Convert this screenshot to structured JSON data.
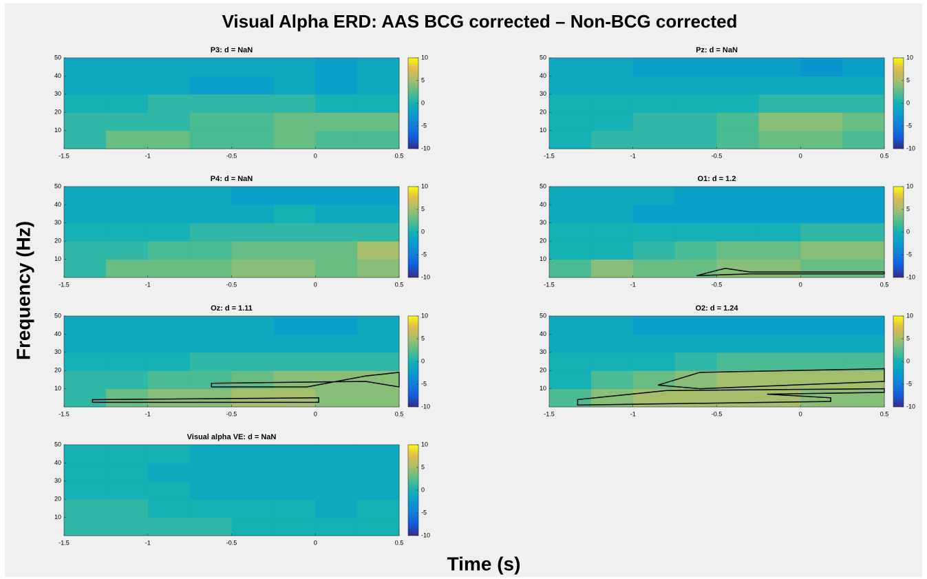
{
  "title": "Visual Alpha ERD: AAS BCG corrected – Non-BCG corrected",
  "x_label": "Time (s)",
  "y_label": "Frequency (Hz)",
  "chart_data": [
    {
      "type": "heatmap",
      "title": "P3: d = NaN",
      "colormap": "parula",
      "xbins": [
        -1.5,
        -1.25,
        -1,
        -0.75,
        -0.5,
        -0.25,
        0,
        0.25,
        0.5
      ],
      "ybins": [
        0,
        10,
        20,
        30,
        40,
        50
      ],
      "values": [
        [
          1,
          3,
          3,
          2,
          2,
          3,
          2,
          2
        ],
        [
          1,
          1,
          1,
          2,
          2,
          3,
          3,
          3
        ],
        [
          0,
          0,
          1,
          1,
          1,
          1,
          0,
          0
        ],
        [
          -1,
          -1,
          -1,
          -2,
          -2,
          -1,
          -2,
          -1
        ],
        [
          -1,
          -1,
          -1,
          -1,
          -1,
          -1,
          -2,
          -1
        ]
      ],
      "xlim": [
        -1.5,
        0.5
      ],
      "xticks": [
        -1.5,
        -1,
        -0.5,
        0,
        0.5
      ],
      "ylim": [
        0,
        50
      ],
      "yticks": [
        10,
        20,
        30,
        40,
        50
      ],
      "clim": [
        -10,
        10
      ],
      "cticks": [
        -10,
        -5,
        0,
        5,
        10
      ],
      "contours": []
    },
    {
      "type": "heatmap",
      "title": "Pz: d = NaN",
      "colormap": "parula",
      "xbins": [
        -1.5,
        -1.25,
        -1,
        -0.75,
        -0.5,
        -0.25,
        0,
        0.25,
        0.5
      ],
      "ybins": [
        0,
        10,
        20,
        30,
        40,
        50
      ],
      "values": [
        [
          0,
          1,
          1,
          1,
          2,
          3,
          3,
          2
        ],
        [
          0,
          0,
          1,
          1,
          2,
          4,
          4,
          3
        ],
        [
          0,
          0,
          0,
          0,
          0,
          1,
          1,
          1
        ],
        [
          -1,
          -1,
          -1,
          -1,
          -1,
          -1,
          -1,
          -1
        ],
        [
          -1,
          -1,
          -2,
          -2,
          -2,
          -2,
          -3,
          -2
        ]
      ],
      "xlim": [
        -1.5,
        0.5
      ],
      "xticks": [
        -1.5,
        -1,
        -0.5,
        0,
        0.5
      ],
      "ylim": [
        0,
        50
      ],
      "yticks": [
        10,
        20,
        30,
        40,
        50
      ],
      "clim": [
        -10,
        10
      ],
      "cticks": [
        -10,
        -5,
        0,
        5,
        10
      ],
      "contours": []
    },
    {
      "type": "heatmap",
      "title": "P4: d = NaN",
      "colormap": "parula",
      "xbins": [
        -1.5,
        -1.25,
        -1,
        -0.75,
        -0.5,
        -0.25,
        0,
        0.25,
        0.5
      ],
      "ybins": [
        0,
        10,
        20,
        30,
        40,
        50
      ],
      "values": [
        [
          1,
          3,
          3,
          3,
          4,
          4,
          3,
          4
        ],
        [
          1,
          1,
          2,
          2,
          3,
          3,
          3,
          5
        ],
        [
          0,
          0,
          0,
          1,
          1,
          1,
          1,
          1
        ],
        [
          -1,
          -1,
          -1,
          -1,
          -1,
          0,
          -1,
          -1
        ],
        [
          -1,
          -1,
          -1,
          -1,
          -2,
          -2,
          -2,
          -2
        ]
      ],
      "xlim": [
        -1.5,
        0.5
      ],
      "xticks": [
        -1.5,
        -1,
        -0.5,
        0,
        0.5
      ],
      "ylim": [
        0,
        50
      ],
      "yticks": [
        10,
        20,
        30,
        40,
        50
      ],
      "clim": [
        -10,
        10
      ],
      "cticks": [
        -10,
        -5,
        0,
        5,
        10
      ],
      "contours": []
    },
    {
      "type": "heatmap",
      "title": "O1: d = 1.2",
      "colormap": "parula",
      "xbins": [
        -1.5,
        -1.25,
        -1,
        -0.75,
        -0.5,
        -0.25,
        0,
        0.25,
        0.5
      ],
      "ybins": [
        0,
        10,
        20,
        30,
        40,
        50
      ],
      "values": [
        [
          2,
          4,
          3,
          3,
          4,
          4,
          3,
          3
        ],
        [
          0,
          0,
          1,
          2,
          3,
          3,
          4,
          4
        ],
        [
          0,
          0,
          0,
          0,
          0,
          0,
          1,
          1
        ],
        [
          -1,
          -1,
          -2,
          -2,
          -2,
          -2,
          -2,
          -2
        ],
        [
          -1,
          -1,
          -1,
          -2,
          -2,
          -2,
          -2,
          -2
        ]
      ],
      "xlim": [
        -1.5,
        0.5
      ],
      "xticks": [
        -1.5,
        -1,
        -0.5,
        0,
        0.5
      ],
      "ylim": [
        0,
        50
      ],
      "yticks": [
        10,
        20,
        30,
        40,
        50
      ],
      "clim": [
        -10,
        10
      ],
      "cticks": [
        -10,
        -5,
        0,
        5,
        10
      ],
      "contours": [
        {
          "x": [
            -0.62,
            -0.45,
            -0.3,
            0.5,
            0.5,
            -0.3,
            -0.62
          ],
          "y": [
            1,
            5,
            3,
            3,
            2,
            2,
            1
          ]
        }
      ]
    },
    {
      "type": "heatmap",
      "title": "Oz: d = 1.11",
      "colormap": "parula",
      "xbins": [
        -1.5,
        -1.25,
        -1,
        -0.75,
        -0.5,
        -0.25,
        0,
        0.25,
        0.5
      ],
      "ybins": [
        0,
        10,
        20,
        30,
        40,
        50
      ],
      "values": [
        [
          1,
          3,
          4,
          4,
          5,
          5,
          4,
          4
        ],
        [
          1,
          1,
          2,
          2,
          3,
          4,
          4,
          4
        ],
        [
          0,
          0,
          0,
          1,
          1,
          1,
          1,
          1
        ],
        [
          -1,
          -1,
          -1,
          -1,
          -1,
          -1,
          -1,
          -1
        ],
        [
          -1,
          -1,
          -1,
          -1,
          -1,
          -2,
          -2,
          -1
        ]
      ],
      "xlim": [
        -1.5,
        0.5
      ],
      "xticks": [
        -1.5,
        -1,
        -0.5,
        0,
        0.5
      ],
      "ylim": [
        0,
        50
      ],
      "yticks": [
        10,
        20,
        30,
        40,
        50
      ],
      "clim": [
        -10,
        10
      ],
      "cticks": [
        -10,
        -5,
        0,
        5,
        10
      ],
      "contours": [
        {
          "x": [
            -1.33,
            0.02,
            0.02,
            -1.33
          ],
          "y": [
            2.5,
            2.5,
            5,
            4
          ]
        },
        {
          "x": [
            -0.62,
            -0.05,
            0.3,
            0.5,
            0.5,
            0.3,
            -0.62
          ],
          "y": [
            11,
            11,
            17,
            19,
            11,
            14,
            13
          ]
        }
      ]
    },
    {
      "type": "heatmap",
      "title": "O2: d = 1.24",
      "colormap": "parula",
      "xbins": [
        -1.5,
        -1.25,
        -1,
        -0.75,
        -0.5,
        -0.25,
        0,
        0.25,
        0.5
      ],
      "ybins": [
        0,
        10,
        20,
        30,
        40,
        50
      ],
      "values": [
        [
          2,
          4,
          5,
          5,
          5,
          5,
          4,
          4
        ],
        [
          0,
          2,
          3,
          4,
          5,
          5,
          5,
          5
        ],
        [
          0,
          0,
          0,
          1,
          2,
          2,
          2,
          2
        ],
        [
          -1,
          -1,
          -1,
          -1,
          -1,
          -1,
          -1,
          -1
        ],
        [
          -1,
          -1,
          -2,
          -2,
          -2,
          -2,
          -2,
          -2
        ]
      ],
      "xlim": [
        -1.5,
        0.5
      ],
      "xticks": [
        -1.5,
        -1,
        -0.5,
        0,
        0.5
      ],
      "ylim": [
        0,
        50
      ],
      "yticks": [
        10,
        20,
        30,
        40,
        50
      ],
      "clim": [
        -10,
        10
      ],
      "cticks": [
        -10,
        -5,
        0,
        5,
        10
      ],
      "contours": [
        {
          "x": [
            -1.33,
            0.18,
            0.18,
            -0.2,
            0.5,
            0.5,
            -0.8,
            -1.33
          ],
          "y": [
            1,
            3,
            5,
            7,
            8,
            10,
            9,
            4
          ]
        },
        {
          "x": [
            -0.85,
            -0.6,
            0.5,
            0.5,
            -0.6
          ],
          "y": [
            12,
            19,
            21,
            14,
            10
          ]
        }
      ]
    },
    {
      "type": "heatmap",
      "title": "Visual alpha VE: d = NaN",
      "colormap": "parula",
      "xbins": [
        -1.5,
        -1.25,
        -1,
        -0.75,
        -0.5,
        -0.25,
        0,
        0.25,
        0.5
      ],
      "ybins": [
        0,
        10,
        20,
        30,
        40,
        50
      ],
      "values": [
        [
          1,
          1,
          1,
          1,
          0,
          0,
          0,
          0
        ],
        [
          1,
          1,
          0,
          0,
          0,
          0,
          -1,
          0
        ],
        [
          0,
          0,
          0,
          -1,
          -1,
          -1,
          -1,
          -1
        ],
        [
          0,
          0,
          -1,
          -1,
          -1,
          -1,
          -1,
          -1
        ],
        [
          0,
          0,
          0,
          -1,
          -1,
          -1,
          -1,
          -1
        ]
      ],
      "xlim": [
        -1.5,
        0.5
      ],
      "xticks": [
        -1.5,
        -1,
        -0.5,
        0,
        0.5
      ],
      "ylim": [
        0,
        50
      ],
      "yticks": [
        10,
        20,
        30,
        40,
        50
      ],
      "clim": [
        -10,
        10
      ],
      "cticks": [
        -10,
        -5,
        0,
        5,
        10
      ],
      "contours": []
    }
  ]
}
